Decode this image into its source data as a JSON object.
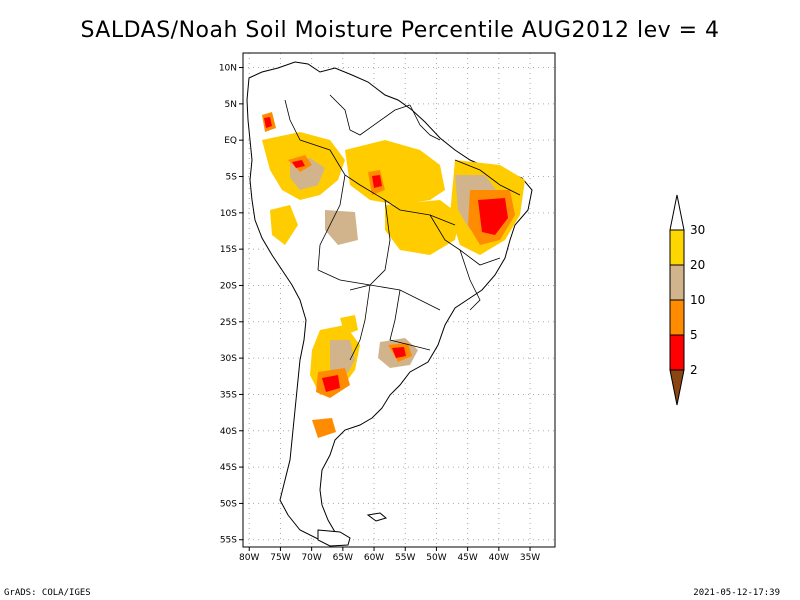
{
  "title": "SALDAS/Noah Soil Moisture Percentile AUG2012 lev = 4",
  "footer_left": "GrADS: COLA/IGES",
  "footer_right": "2021-05-12-17:39",
  "map": {
    "lat_range": [
      -56,
      12
    ],
    "lon_range": [
      -81,
      -31
    ],
    "lat_ticks": [
      {
        "value": 10,
        "label": "10N"
      },
      {
        "value": 5,
        "label": "5N"
      },
      {
        "value": 0,
        "label": "EQ"
      },
      {
        "value": -5,
        "label": "5S"
      },
      {
        "value": -10,
        "label": "10S"
      },
      {
        "value": -15,
        "label": "15S"
      },
      {
        "value": -20,
        "label": "20S"
      },
      {
        "value": -25,
        "label": "25S"
      },
      {
        "value": -30,
        "label": "30S"
      },
      {
        "value": -35,
        "label": "35S"
      },
      {
        "value": -40,
        "label": "40S"
      },
      {
        "value": -45,
        "label": "45S"
      },
      {
        "value": -50,
        "label": "50S"
      },
      {
        "value": -55,
        "label": "55S"
      }
    ],
    "lon_ticks": [
      {
        "value": -80,
        "label": "80W"
      },
      {
        "value": -75,
        "label": "75W"
      },
      {
        "value": -70,
        "label": "70W"
      },
      {
        "value": -65,
        "label": "65W"
      },
      {
        "value": -60,
        "label": "60W"
      },
      {
        "value": -55,
        "label": "55W"
      },
      {
        "value": -50,
        "label": "50W"
      },
      {
        "value": -45,
        "label": "45W"
      },
      {
        "value": -40,
        "label": "40W"
      },
      {
        "value": -35,
        "label": "35W"
      }
    ]
  },
  "colorbar": {
    "levels": [
      {
        "label": "30",
        "color": "#ffd700"
      },
      {
        "label": "20",
        "color": "#d2b48c"
      },
      {
        "label": "10",
        "color": "#ff8c00"
      },
      {
        "label": "5",
        "color": "#ff0000"
      },
      {
        "label": "2",
        "color": "#8b4513"
      }
    ],
    "top_color": "#ffffff",
    "bottom_color": "#8b4513"
  },
  "colors": {
    "yellow": "#ffcc00",
    "tan": "#d2b48c",
    "orange": "#ff8c00",
    "red": "#ff0000",
    "brown": "#8b4513"
  }
}
